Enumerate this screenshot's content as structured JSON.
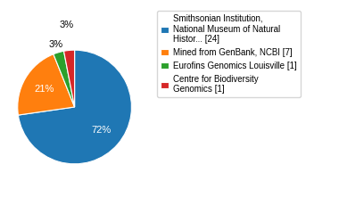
{
  "chart_data": {
    "type": "pie",
    "categories": [
      "Smithsonian Institution,\nNational Museum of Natural\nHistor... [24]",
      "Mined from GenBank, NCBI [7]",
      "Eurofins Genomics Louisville [1]",
      "Centre for Biodiversity\nGenomics [1]"
    ],
    "values": [
      72,
      21,
      3,
      3
    ],
    "value_labels": [
      "72%",
      "21%",
      "3%",
      "3%"
    ],
    "data_labels": true,
    "legend": "upper left"
  }
}
